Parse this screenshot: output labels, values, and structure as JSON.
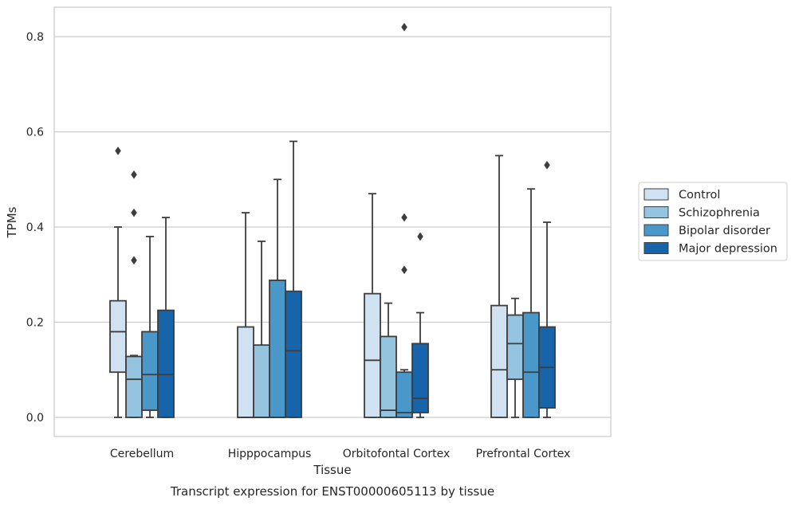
{
  "chart_data": {
    "type": "box",
    "title": "",
    "caption": "Transcript expression for ENST00000605113 by tissue",
    "xlabel": "Tissue",
    "ylabel": "TPMs",
    "ylim": [
      -0.04,
      0.862
    ],
    "yticks": [
      0.0,
      0.2,
      0.4,
      0.6,
      0.8
    ],
    "ytick_labels": [
      "0.0",
      "0.2",
      "0.4",
      "0.6",
      "0.8"
    ],
    "categories": [
      "Cerebellum",
      "Hipppocampus",
      "Orbitofontal Cortex",
      "Prefrontal Cortex"
    ],
    "grid": "horizontal",
    "legend_position": "right",
    "series": [
      {
        "name": "Control",
        "color": "#d0e1f2",
        "boxes": [
          {
            "min": 0.0,
            "q1": 0.095,
            "median": 0.18,
            "q3": 0.245,
            "max": 0.4,
            "outliers": [
              0.56
            ]
          },
          {
            "min": 0.0,
            "q1": 0.0,
            "median": 0.0,
            "q3": 0.19,
            "max": 0.43,
            "outliers": []
          },
          {
            "min": 0.0,
            "q1": 0.0,
            "median": 0.12,
            "q3": 0.26,
            "max": 0.47,
            "outliers": []
          },
          {
            "min": 0.0,
            "q1": 0.0,
            "median": 0.1,
            "q3": 0.235,
            "max": 0.55,
            "outliers": []
          }
        ]
      },
      {
        "name": "Schizophrenia",
        "color": "#94c4df",
        "boxes": [
          {
            "min": 0.0,
            "q1": 0.0,
            "median": 0.08,
            "q3": 0.128,
            "max": 0.13,
            "outliers": [
              0.33,
              0.43,
              0.51
            ]
          },
          {
            "min": 0.0,
            "q1": 0.0,
            "median": 0.0,
            "q3": 0.152,
            "max": 0.37,
            "outliers": []
          },
          {
            "min": 0.0,
            "q1": 0.0,
            "median": 0.015,
            "q3": 0.17,
            "max": 0.24,
            "outliers": []
          },
          {
            "min": 0.0,
            "q1": 0.08,
            "median": 0.155,
            "q3": 0.215,
            "max": 0.25,
            "outliers": []
          }
        ]
      },
      {
        "name": "Bipolar disorder",
        "color": "#4a98c9",
        "boxes": [
          {
            "min": 0.0,
            "q1": 0.015,
            "median": 0.09,
            "q3": 0.18,
            "max": 0.38,
            "outliers": []
          },
          {
            "min": 0.0,
            "q1": 0.0,
            "median": 0.0,
            "q3": 0.288,
            "max": 0.5,
            "outliers": []
          },
          {
            "min": 0.0,
            "q1": 0.0,
            "median": 0.01,
            "q3": 0.095,
            "max": 0.1,
            "outliers": [
              0.31,
              0.42,
              0.82
            ]
          },
          {
            "min": 0.0,
            "q1": 0.0,
            "median": 0.095,
            "q3": 0.22,
            "max": 0.48,
            "outliers": []
          }
        ]
      },
      {
        "name": "Major depression",
        "color": "#1764ab",
        "boxes": [
          {
            "min": 0.0,
            "q1": 0.0,
            "median": 0.09,
            "q3": 0.225,
            "max": 0.42,
            "outliers": []
          },
          {
            "min": 0.0,
            "q1": 0.0,
            "median": 0.14,
            "q3": 0.265,
            "max": 0.58,
            "outliers": []
          },
          {
            "min": 0.0,
            "q1": 0.01,
            "median": 0.04,
            "q3": 0.155,
            "max": 0.22,
            "outliers": [
              0.38
            ]
          },
          {
            "min": 0.0,
            "q1": 0.02,
            "median": 0.105,
            "q3": 0.19,
            "max": 0.41,
            "outliers": [
              0.53
            ]
          }
        ]
      }
    ]
  }
}
